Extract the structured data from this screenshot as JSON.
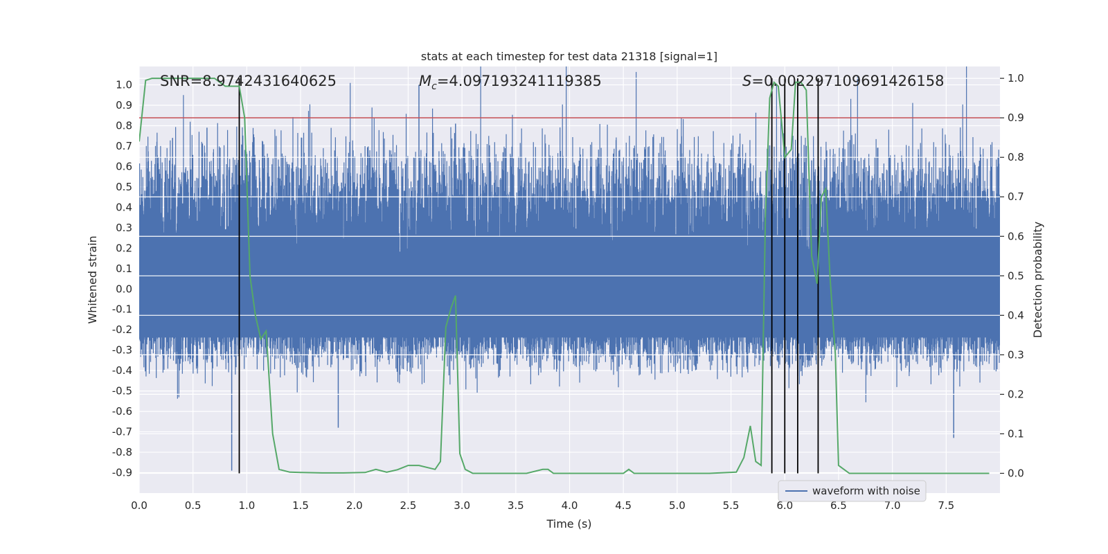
{
  "chart_data": {
    "type": "line",
    "title": "stats at each timestep for test data 21318 [signal=1]",
    "xlabel": "Time (s)",
    "ylabel_left": "Whitened strain",
    "ylabel_right": "Detection probability",
    "xlim": [
      0.0,
      8.0
    ],
    "ylim_left": [
      -1.0,
      1.09
    ],
    "ylim_right": [
      -0.05,
      1.03
    ],
    "x_ticks": [
      "0.0",
      "0.5",
      "1.0",
      "1.5",
      "2.0",
      "2.5",
      "3.0",
      "3.5",
      "4.0",
      "4.5",
      "5.0",
      "5.5",
      "6.0",
      "6.5",
      "7.0",
      "7.5"
    ],
    "y_ticks_left": [
      "1.0",
      "0.9",
      "0.8",
      "0.7",
      "0.6",
      "0.5",
      "0.4",
      "0.3",
      "0.2",
      "0.1",
      "0.0",
      "-0.1",
      "-0.2",
      "-0.3",
      "-0.4",
      "-0.5",
      "-0.6",
      "-0.7",
      "-0.8",
      "-0.9"
    ],
    "y_ticks_right": [
      "1.0",
      "0.9",
      "0.8",
      "0.7",
      "0.6",
      "0.5",
      "0.4",
      "0.3",
      "0.2",
      "0.1",
      "0.0"
    ],
    "annotations": {
      "snr": "SNR=8.9742431640625",
      "mc_symbol": "M",
      "mc_sub": "c",
      "mc_value": "=4.097193241119385",
      "s_symbol": "S",
      "s_value": "=0.002297109691426158"
    },
    "threshold": {
      "value_right": 0.9,
      "color": "#c44e52"
    },
    "vertical_lines": [
      0.93,
      5.88,
      6.0,
      6.12,
      6.31
    ],
    "series": [
      {
        "name": "waveform with noise",
        "color": "#4c72b0",
        "axis": "left",
        "envelope_typical": 0.4,
        "peaks": [
          [
            0.86,
            -0.89
          ],
          [
            2.6,
            1.0
          ],
          [
            2.94,
            0.81
          ],
          [
            0.63,
            0.79
          ],
          [
            0.31,
            0.74
          ],
          [
            1.85,
            -0.68
          ],
          [
            7.57,
            -0.73
          ],
          [
            6.25,
            0.63
          ]
        ]
      },
      {
        "name": "detection probability",
        "color": "#55a868",
        "axis": "right",
        "x": [
          0.0,
          0.06,
          0.12,
          0.2,
          0.3,
          0.4,
          0.5,
          0.6,
          0.7,
          0.75,
          0.8,
          0.85,
          0.9,
          0.93,
          0.98,
          1.03,
          1.08,
          1.13,
          1.18,
          1.24,
          1.3,
          1.4,
          1.5,
          1.7,
          1.9,
          2.1,
          2.2,
          2.3,
          2.4,
          2.5,
          2.6,
          2.75,
          2.8,
          2.85,
          2.9,
          2.94,
          2.98,
          3.03,
          3.1,
          3.2,
          3.3,
          3.6,
          3.75,
          3.8,
          3.85,
          3.9,
          4.0,
          4.5,
          4.55,
          4.6,
          4.7,
          5.0,
          5.3,
          5.55,
          5.62,
          5.68,
          5.73,
          5.78,
          5.82,
          5.86,
          5.9,
          5.94,
          6.0,
          6.06,
          6.1,
          6.15,
          6.2,
          6.25,
          6.3,
          6.34,
          6.38,
          6.42,
          6.47,
          6.5,
          6.55,
          6.6,
          6.65,
          6.7,
          6.8,
          7.0,
          7.5,
          7.9
        ],
        "y": [
          0.84,
          0.995,
          1.0,
          1.0,
          1.0,
          1.0,
          1.0,
          1.0,
          1.0,
          0.99,
          0.98,
          0.98,
          0.98,
          0.98,
          0.9,
          0.5,
          0.4,
          0.34,
          0.36,
          0.1,
          0.01,
          0.003,
          0.002,
          0.001,
          0.001,
          0.002,
          0.01,
          0.003,
          0.009,
          0.02,
          0.02,
          0.01,
          0.03,
          0.37,
          0.42,
          0.45,
          0.05,
          0.01,
          0.0,
          0.0,
          0.0,
          0.0,
          0.01,
          0.01,
          0.0,
          0.0,
          0.0,
          0.0,
          0.01,
          0.0,
          0.0,
          0.0,
          0.0,
          0.003,
          0.04,
          0.12,
          0.03,
          0.02,
          0.65,
          0.95,
          0.99,
          0.98,
          0.8,
          0.82,
          0.99,
          0.99,
          0.97,
          0.55,
          0.48,
          0.7,
          0.72,
          0.5,
          0.3,
          0.02,
          0.01,
          0.0,
          0.0,
          0.0,
          0.0,
          0.0,
          0.0,
          0.0
        ]
      }
    ],
    "legend": {
      "label": "waveform with noise",
      "placement": "lower-right"
    }
  }
}
